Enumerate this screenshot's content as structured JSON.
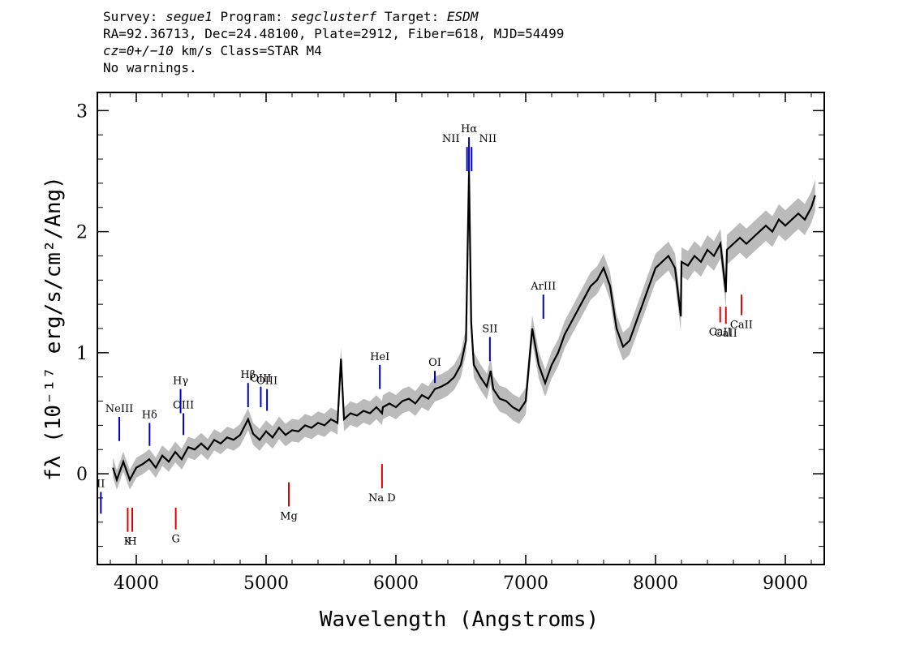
{
  "header": {
    "survey_label": "Survey:",
    "survey": "segue1",
    "program_label": "Program:",
    "program": "segclusterf",
    "target_label": "Target:",
    "target": "ESDM",
    "line2": "RA=92.36713, Dec=24.48100, Plate=2912, Fiber=618, MJD=54499",
    "cz": "cz=0+/−10",
    "cz_rest": " km/s Class=STAR M4",
    "line4": "No warnings."
  },
  "chart_data": {
    "type": "line",
    "xlabel": "Wavelength (Angstroms)",
    "ylabel": "fλ (10⁻¹⁷ erg/s/cm²/Ang)",
    "xlim": [
      3700,
      9300
    ],
    "ylim": [
      -0.75,
      3.15
    ],
    "x_ticks": [
      4000,
      5000,
      6000,
      7000,
      8000,
      9000
    ],
    "y_ticks": [
      0,
      1,
      2,
      3
    ],
    "grid": false,
    "series": [
      {
        "color": "#000000",
        "x": [
          3820,
          3850,
          3900,
          3950,
          4000,
          4050,
          4100,
          4150,
          4200,
          4250,
          4300,
          4350,
          4400,
          4450,
          4500,
          4550,
          4600,
          4650,
          4700,
          4750,
          4800,
          4861,
          4900,
          4950,
          5000,
          5050,
          5100,
          5150,
          5200,
          5250,
          5300,
          5350,
          5400,
          5450,
          5500,
          5550,
          5577,
          5600,
          5650,
          5700,
          5750,
          5800,
          5850,
          5893,
          5900,
          5950,
          6000,
          6050,
          6100,
          6150,
          6200,
          6250,
          6300,
          6350,
          6400,
          6450,
          6500,
          6540,
          6563,
          6580,
          6600,
          6650,
          6700,
          6730,
          6750,
          6800,
          6850,
          6900,
          6950,
          7000,
          7050,
          7100,
          7150,
          7200,
          7250,
          7300,
          7350,
          7400,
          7450,
          7500,
          7550,
          7600,
          7650,
          7700,
          7750,
          7800,
          7850,
          7900,
          7950,
          8000,
          8050,
          8100,
          8150,
          8195,
          8200,
          8250,
          8300,
          8350,
          8400,
          8450,
          8500,
          8542,
          8550,
          8600,
          8650,
          8700,
          8750,
          8800,
          8850,
          8900,
          8950,
          9000,
          9050,
          9100,
          9150,
          9200,
          9230
        ],
        "y": [
          0.05,
          -0.05,
          0.1,
          -0.05,
          0.05,
          0.08,
          0.12,
          0.05,
          0.15,
          0.1,
          0.18,
          0.12,
          0.22,
          0.2,
          0.25,
          0.2,
          0.28,
          0.25,
          0.3,
          0.28,
          0.32,
          0.45,
          0.33,
          0.28,
          0.35,
          0.3,
          0.38,
          0.32,
          0.36,
          0.35,
          0.4,
          0.38,
          0.42,
          0.4,
          0.45,
          0.42,
          0.95,
          0.45,
          0.5,
          0.48,
          0.52,
          0.5,
          0.55,
          0.5,
          0.55,
          0.58,
          0.55,
          0.6,
          0.62,
          0.58,
          0.65,
          0.62,
          0.7,
          0.72,
          0.75,
          0.8,
          0.9,
          1.1,
          2.5,
          1.25,
          0.9,
          0.8,
          0.72,
          0.85,
          0.7,
          0.62,
          0.6,
          0.55,
          0.52,
          0.6,
          1.2,
          0.9,
          0.75,
          0.9,
          1.0,
          1.15,
          1.25,
          1.35,
          1.45,
          1.55,
          1.6,
          1.7,
          1.55,
          1.2,
          1.05,
          1.1,
          1.25,
          1.4,
          1.55,
          1.7,
          1.75,
          1.8,
          1.7,
          1.3,
          1.75,
          1.72,
          1.8,
          1.75,
          1.85,
          1.8,
          1.9,
          1.5,
          1.85,
          1.9,
          1.95,
          1.9,
          1.95,
          2.0,
          2.05,
          2.0,
          2.1,
          2.05,
          2.1,
          2.15,
          2.1,
          2.2,
          2.3
        ]
      }
    ],
    "emission_lines": [
      {
        "label": "NeIII",
        "wavelength": 3869,
        "ymin": 0.27,
        "ymax": 0.47
      },
      {
        "label": "Hδ",
        "wavelength": 4102,
        "ymin": 0.23,
        "ymax": 0.42
      },
      {
        "label": "OIII",
        "wavelength": 4363,
        "ymin": 0.32,
        "ymax": 0.5
      },
      {
        "label": "Hγ",
        "wavelength": 4341,
        "ymin": 0.5,
        "ymax": 0.7
      },
      {
        "label": "Hβ",
        "wavelength": 4861,
        "ymin": 0.55,
        "ymax": 0.75
      },
      {
        "label": "OIII",
        "wavelength": 4959,
        "ymin": 0.55,
        "ymax": 0.72
      },
      {
        "label": "OIII",
        "wavelength": 5007,
        "ymin": 0.52,
        "ymax": 0.7
      },
      {
        "label": "HeI",
        "wavelength": 5876,
        "ymin": 0.7,
        "ymax": 0.9
      },
      {
        "label": "OI",
        "wavelength": 6300,
        "ymin": 0.75,
        "ymax": 0.85
      },
      {
        "label": "NΙΙ",
        "wavelength": 6548,
        "ymin": 2.5,
        "ymax": 2.7
      },
      {
        "label": "Hα",
        "wavelength": 6563,
        "ymin": 2.5,
        "ymax": 2.78
      },
      {
        "label": "NΙΙ",
        "wavelength": 6583,
        "ymin": 2.5,
        "ymax": 2.7
      },
      {
        "label": "SII",
        "wavelength": 6724,
        "ymin": 0.93,
        "ymax": 1.13
      },
      {
        "label": "ArIII",
        "wavelength": 7136,
        "ymin": 1.28,
        "ymax": 1.48
      },
      {
        "label": "II",
        "wavelength": 3727,
        "ymin": -0.33,
        "ymax": -0.15
      }
    ],
    "absorption_lines": [
      {
        "label": "K",
        "wavelength": 3934,
        "ymin": -0.48,
        "ymax": -0.28
      },
      {
        "label": "H",
        "wavelength": 3969,
        "ymin": -0.48,
        "ymax": -0.28
      },
      {
        "label": "G",
        "wavelength": 4304,
        "ymin": -0.46,
        "ymax": -0.28
      },
      {
        "label": "Mg",
        "wavelength": 5175,
        "ymin": -0.27,
        "ymax": -0.07
      },
      {
        "label": "Na D",
        "wavelength": 5893,
        "ymin": -0.12,
        "ymax": 0.08
      },
      {
        "label": "CaII",
        "wavelength": 8498,
        "ymin": 1.25,
        "ymax": 1.38
      },
      {
        "label": "CaII",
        "wavelength": 8542,
        "ymin": 1.24,
        "ymax": 1.38
      },
      {
        "label": "CaII",
        "wavelength": 8662,
        "ymin": 1.31,
        "ymax": 1.48
      }
    ],
    "colors": {
      "flux": "#000000",
      "noise": "#bbbbbb",
      "emission": "#0000cc",
      "absorption": "#dd0000"
    }
  }
}
